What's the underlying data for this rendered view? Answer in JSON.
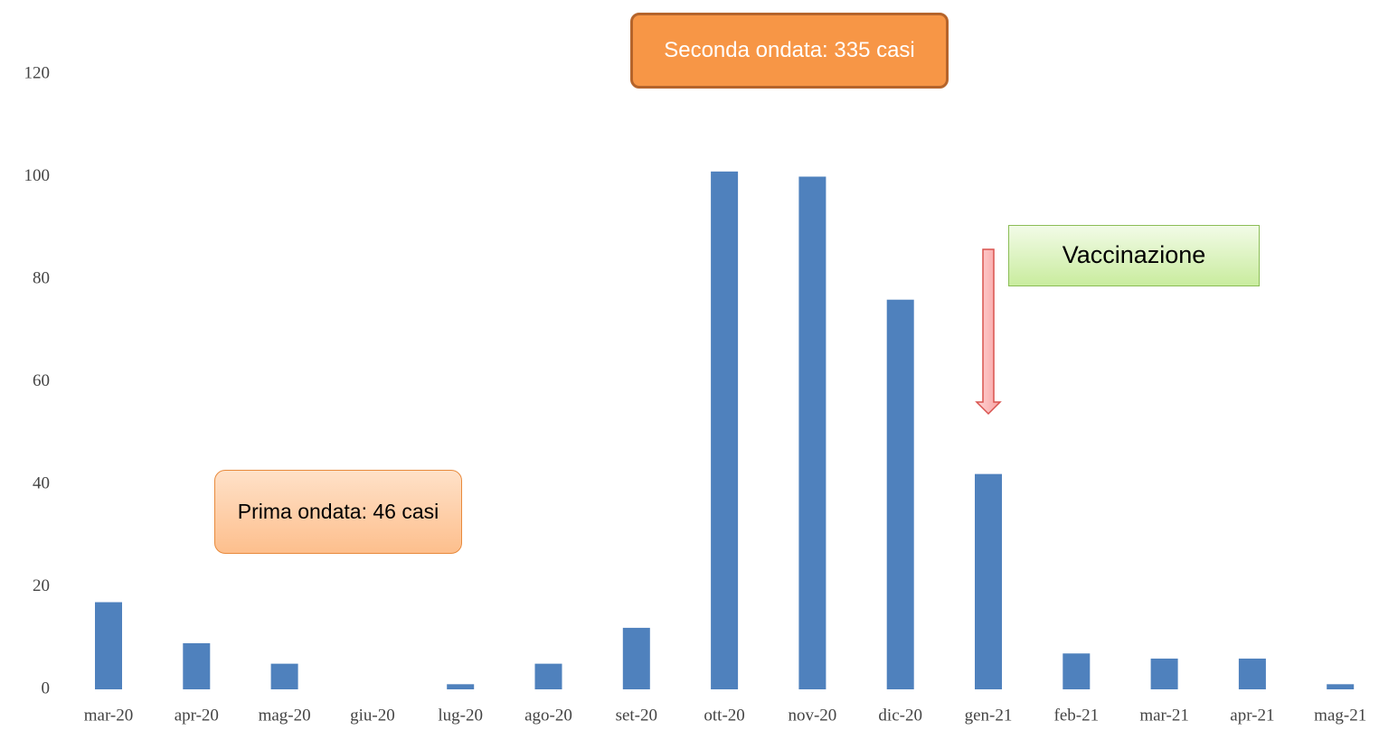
{
  "chart_data": {
    "type": "bar",
    "categories": [
      "mar-20",
      "apr-20",
      "mag-20",
      "giu-20",
      "lug-20",
      "ago-20",
      "set-20",
      "ott-20",
      "nov-20",
      "dic-20",
      "gen-21",
      "feb-21",
      "mar-21",
      "apr-21",
      "mag-21"
    ],
    "values": [
      17,
      9,
      5,
      0,
      1,
      5,
      12,
      101,
      100,
      76,
      42,
      7,
      6,
      6,
      1
    ],
    "color": "#4f81bd",
    "ylim": [
      0,
      120
    ],
    "yticks": [
      0,
      20,
      40,
      60,
      80,
      100,
      120
    ],
    "grid": false,
    "annotations": [
      "Seconda ondata: 335 casi",
      "Prima ondata: 46 casi",
      "Vaccinazione"
    ]
  }
}
